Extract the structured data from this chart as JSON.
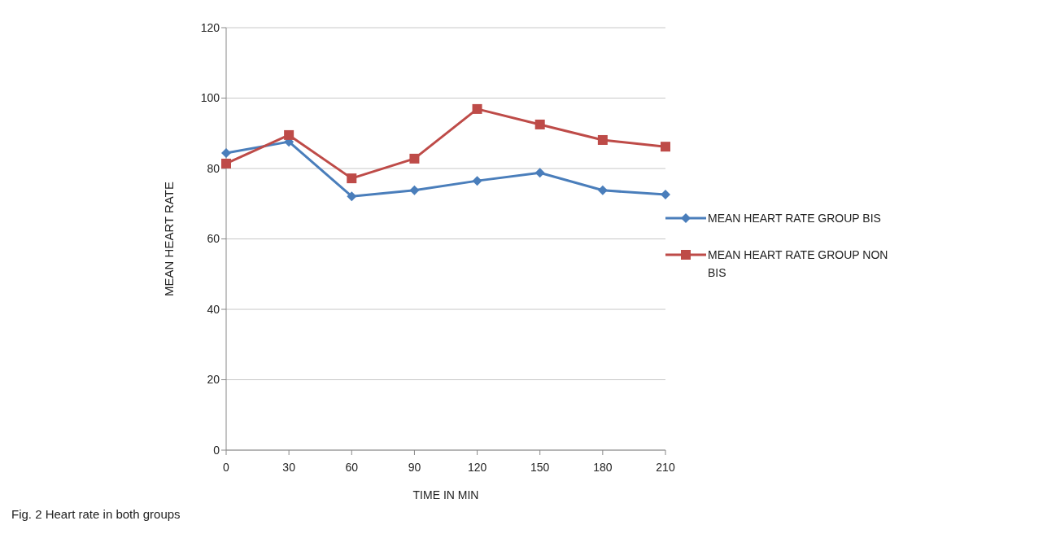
{
  "chart_data": {
    "type": "line",
    "xlabel": "TIME IN MIN",
    "ylabel": "MEAN  HEART  RATE",
    "categories": [
      "0",
      "30",
      "60",
      "90",
      "120",
      "150",
      "180",
      "210"
    ],
    "series": [
      {
        "name": "MEAN HEART RATE GROUP BIS",
        "color": "#4a7ebb",
        "marker": "diamond",
        "values": [
          84.4,
          87.6,
          72.1,
          73.8,
          76.5,
          78.8,
          73.8,
          72.6
        ]
      },
      {
        "name": "MEAN HEART RATE GROUP NON BIS",
        "color": "#be4b48",
        "marker": "square",
        "values": [
          81.4,
          89.5,
          77.2,
          82.8,
          96.9,
          92.5,
          88.1,
          86.2
        ]
      }
    ],
    "ylim": [
      0,
      120
    ],
    "yticks": [
      0,
      20,
      40,
      60,
      80,
      100,
      120
    ],
    "grid": "y",
    "legend": "right",
    "line_style": "solid",
    "annotations": [
      "Fig. 2  Heart rate in both groups"
    ]
  }
}
